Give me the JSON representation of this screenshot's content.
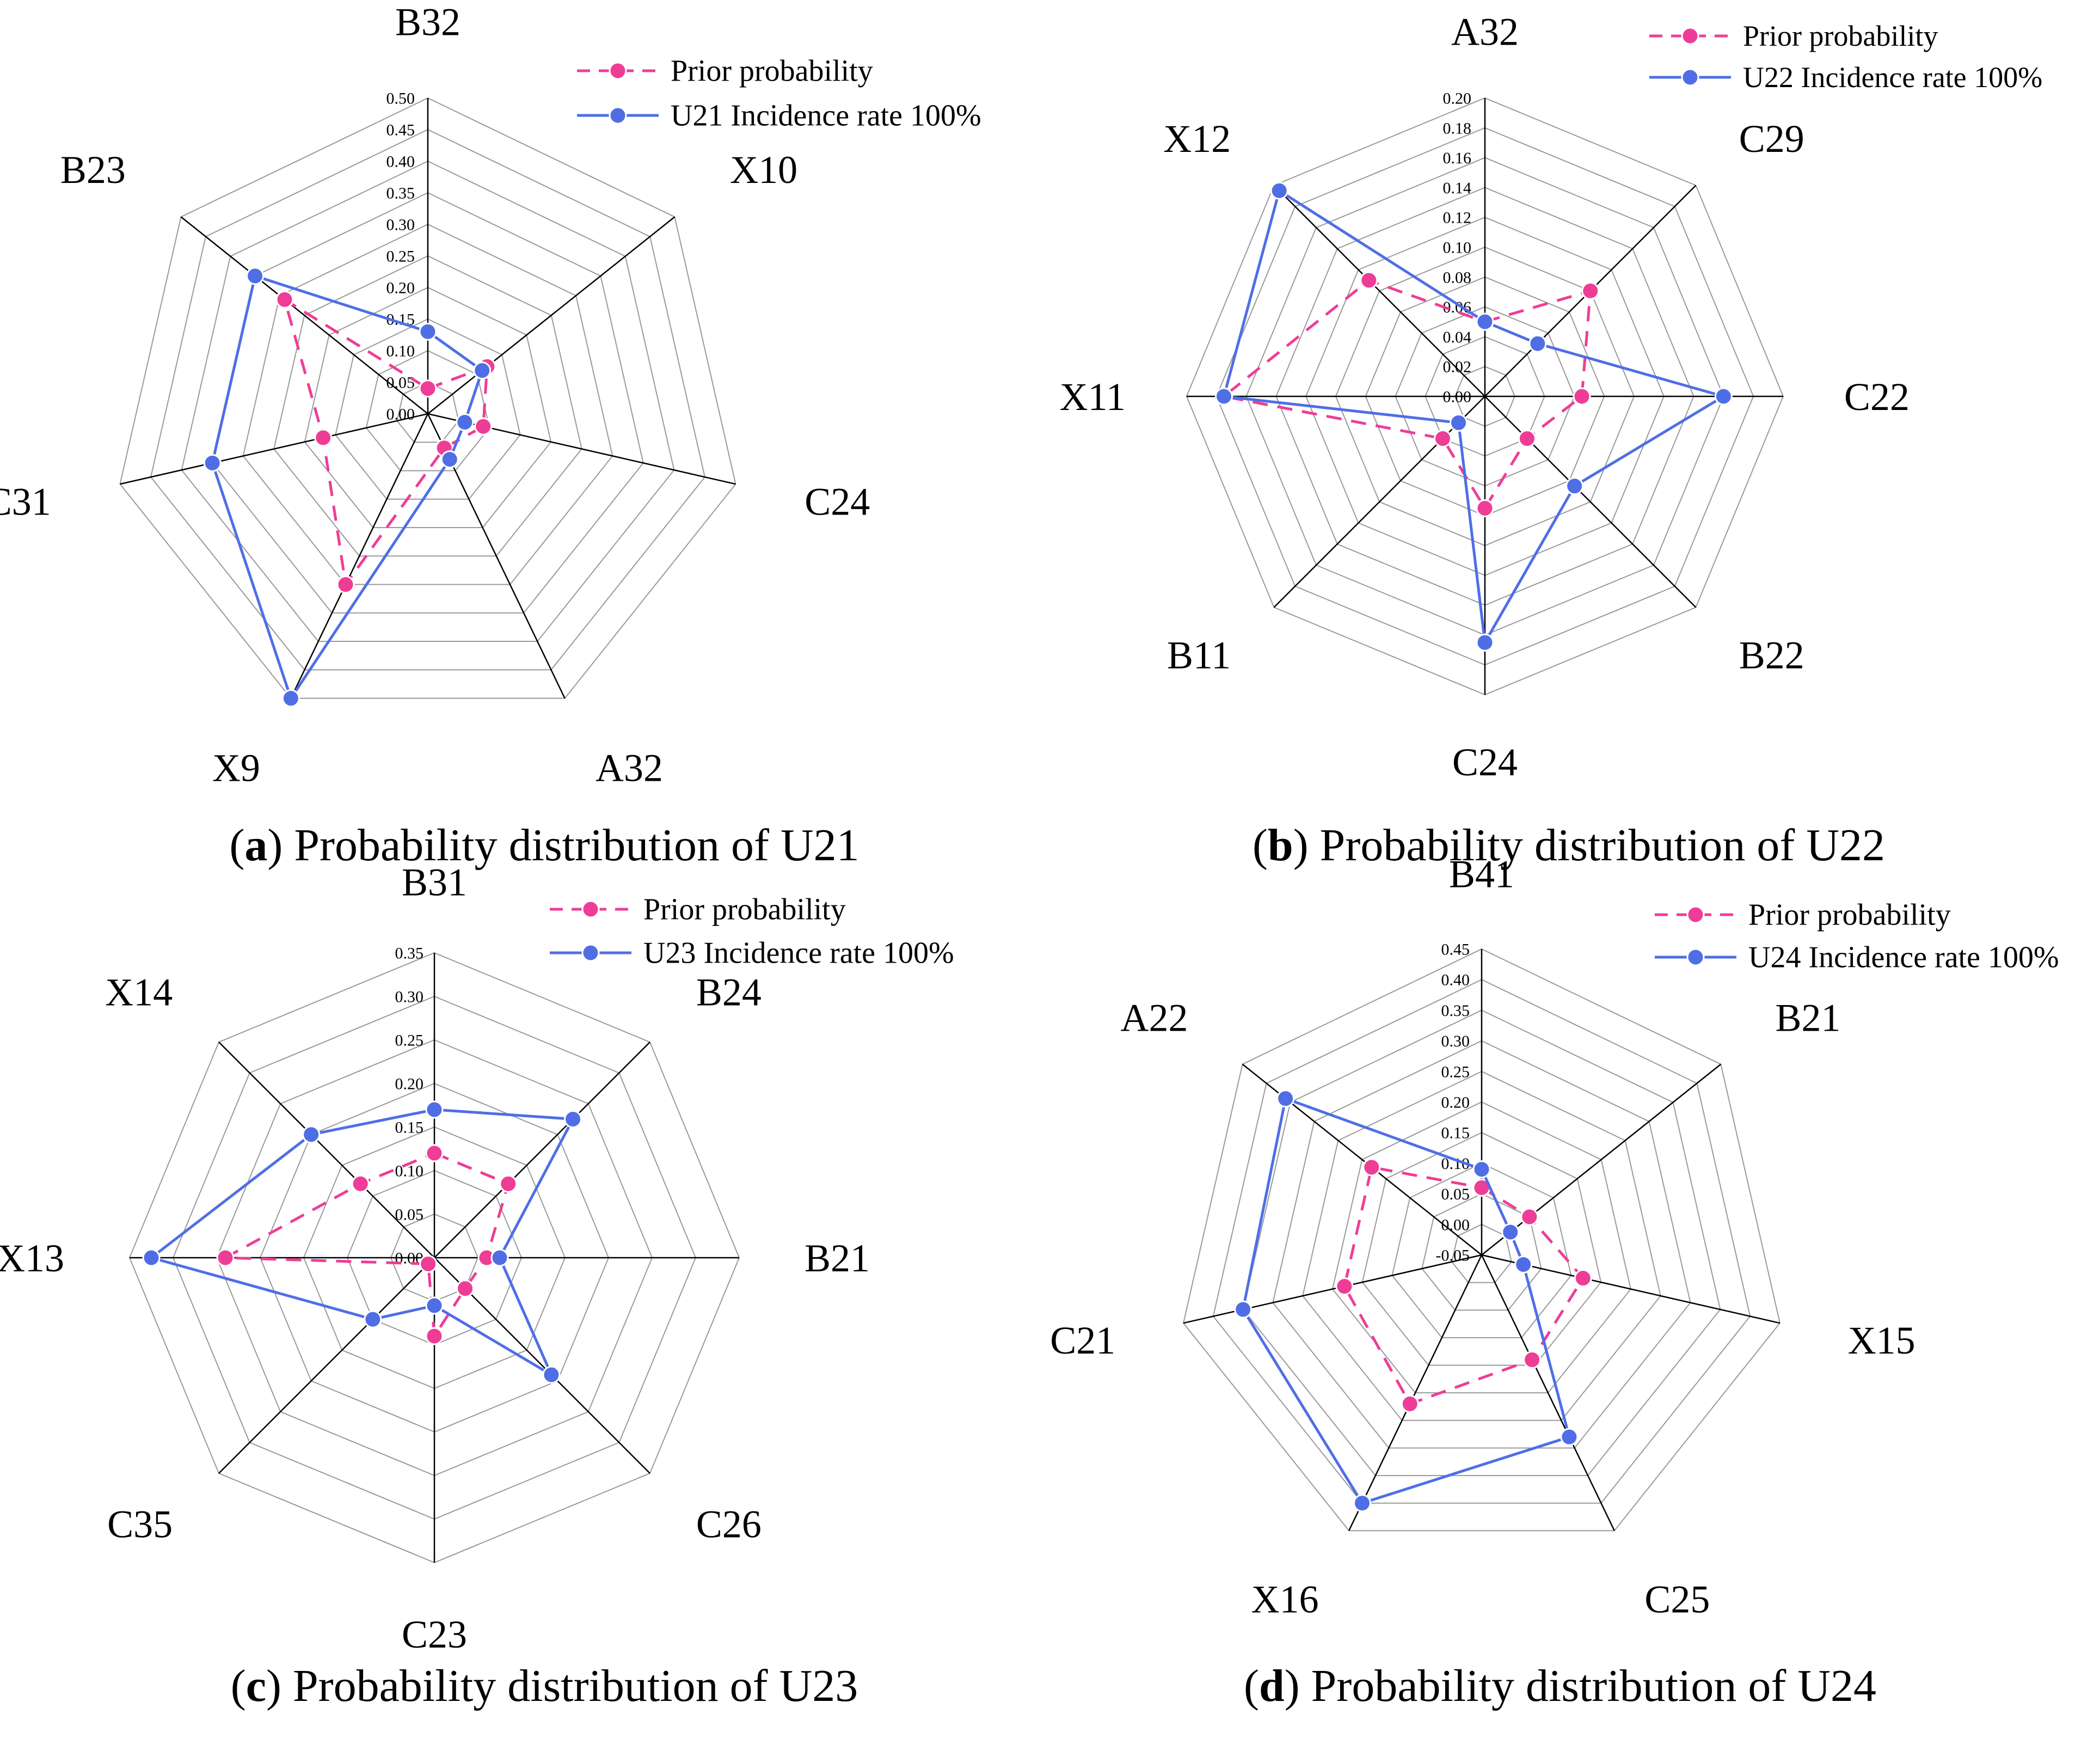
{
  "colors": {
    "prior": "#ee3d96",
    "posterior": "#4f6ee6",
    "grid": "#9a9a9a",
    "axis": "#000000"
  },
  "chart_data": [
    {
      "type": "radar",
      "panel_letter": "a",
      "title": "Probability distribution of U21",
      "categories": [
        "B32",
        "X10",
        "C24",
        "A32",
        "X9",
        "C31",
        "B23"
      ],
      "rlim": [
        0.0,
        0.5
      ],
      "ticks": [
        "0.00",
        "0.05",
        "0.10",
        "0.15",
        "0.20",
        "0.25",
        "0.30",
        "0.35",
        "0.40",
        "0.45",
        "0.50"
      ],
      "series": [
        {
          "name": "Prior probability",
          "style": "dashed",
          "values": [
            0.04,
            0.12,
            0.09,
            0.06,
            0.3,
            0.17,
            0.29
          ]
        },
        {
          "name": "U21 Incidence rate 100%",
          "style": "solid",
          "values": [
            0.13,
            0.11,
            0.06,
            0.08,
            0.5,
            0.35,
            0.35
          ]
        }
      ]
    },
    {
      "type": "radar",
      "panel_letter": "b",
      "title": "Probability distribution of U22",
      "categories": [
        "A32",
        "C29",
        "C22",
        "B22",
        "C24",
        "B11",
        "X11",
        "X12"
      ],
      "rlim": [
        0.0,
        0.2
      ],
      "ticks": [
        "0.00",
        "0.02",
        "0.04",
        "0.06",
        "0.08",
        "0.10",
        "0.12",
        "0.14",
        "0.16",
        "0.18",
        "0.20"
      ],
      "series": [
        {
          "name": "Prior probability",
          "style": "dashed",
          "values": [
            0.05,
            0.1,
            0.065,
            0.04,
            0.075,
            0.04,
            0.175,
            0.11
          ]
        },
        {
          "name": "U22 Incidence rate 100%",
          "style": "solid",
          "values": [
            0.05,
            0.05,
            0.16,
            0.085,
            0.165,
            0.025,
            0.175,
            0.195
          ]
        }
      ]
    },
    {
      "type": "radar",
      "panel_letter": "c",
      "title": "Probability distribution of U23",
      "categories": [
        "B31",
        "B24",
        "B21",
        "C26",
        "C23",
        "C35",
        "X13",
        "X14"
      ],
      "rlim": [
        0.0,
        0.35
      ],
      "ticks": [
        "0.00",
        "0.05",
        "0.10",
        "0.15",
        "0.20",
        "0.25",
        "0.30",
        "0.35"
      ],
      "series": [
        {
          "name": "Prior probability",
          "style": "dashed",
          "values": [
            0.12,
            0.12,
            0.06,
            0.05,
            0.09,
            0.01,
            0.24,
            0.12
          ]
        },
        {
          "name": "U23 Incidence rate 100%",
          "style": "solid",
          "values": [
            0.17,
            0.225,
            0.075,
            0.19,
            0.055,
            0.1,
            0.325,
            0.2
          ]
        }
      ]
    },
    {
      "type": "radar",
      "panel_letter": "d",
      "title": "Probability distribution of U24",
      "categories": [
        "B41",
        "B21",
        "X15",
        "C25",
        "X16",
        "C21",
        "A22"
      ],
      "rlim": [
        -0.05,
        0.45
      ],
      "ticks": [
        "-0.05",
        "0.00",
        "0.05",
        "0.10",
        "0.15",
        "0.20",
        "0.25",
        "0.30",
        "0.35",
        "0.40",
        "0.45"
      ],
      "series": [
        {
          "name": "Prior probability",
          "style": "dashed",
          "values": [
            0.06,
            0.05,
            0.12,
            0.14,
            0.22,
            0.18,
            0.18
          ]
        },
        {
          "name": "U24 Incidence rate 100%",
          "style": "solid",
          "values": [
            0.09,
            0.01,
            0.02,
            0.28,
            0.4,
            0.35,
            0.36
          ]
        }
      ]
    }
  ]
}
